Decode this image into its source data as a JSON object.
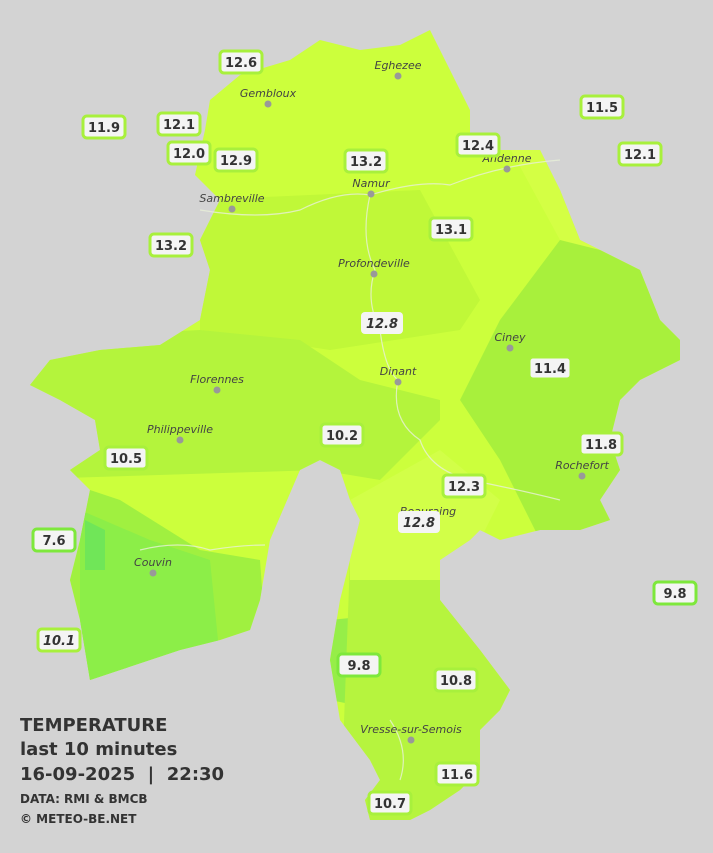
{
  "legend": {
    "title": "TEMPERATURE",
    "subtitle": "last 10 minutes",
    "datetime": "16-09-2025  |  22:30",
    "source": "DATA: RMI & BMCB",
    "credit": "© METEO-BE.NET"
  },
  "cities": [
    "Eghezee",
    "Gembloux",
    "Andenne",
    "Namur",
    "Sambreville",
    "Profondeville",
    "Ciney",
    "Dinant",
    "Florennes",
    "Philippeville",
    "Rochefort",
    "Beauraing",
    "Couvin",
    "Vresse-sur-Semois"
  ],
  "stations": [
    {
      "temp": "12.6"
    },
    {
      "temp": "11.9"
    },
    {
      "temp": "12.1"
    },
    {
      "temp": "12.0"
    },
    {
      "temp": "12.9"
    },
    {
      "temp": "13.2"
    },
    {
      "temp": "12.4"
    },
    {
      "temp": "11.5"
    },
    {
      "temp": "12.1"
    },
    {
      "temp": "13.2"
    },
    {
      "temp": "13.1"
    },
    {
      "temp": "12.8",
      "italic": true
    },
    {
      "temp": "11.4"
    },
    {
      "temp": "10.2"
    },
    {
      "temp": "11.8"
    },
    {
      "temp": "10.5"
    },
    {
      "temp": "12.3"
    },
    {
      "temp": "12.8",
      "italic": true
    },
    {
      "temp": "7.6"
    },
    {
      "temp": "9.8"
    },
    {
      "temp": "10.1",
      "italic": true
    },
    {
      "temp": "9.8"
    },
    {
      "temp": "10.8"
    },
    {
      "temp": "11.6"
    },
    {
      "temp": "10.7"
    }
  ]
}
